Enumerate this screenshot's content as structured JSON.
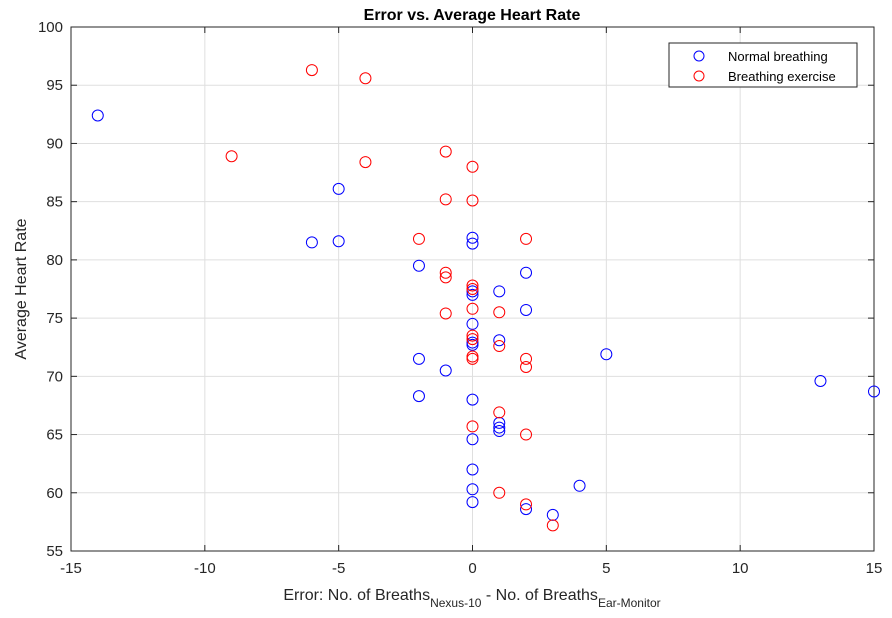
{
  "chart_data": {
    "type": "scatter",
    "title": "Error vs. Average Heart Rate",
    "xlabel": {
      "parts": [
        {
          "text": "Error: No. of Breaths",
          "sub": false
        },
        {
          "text": "Nexus-10",
          "sub": true
        },
        {
          "text": " - No. of Breaths",
          "sub": false
        },
        {
          "text": "Ear-Monitor",
          "sub": true
        }
      ]
    },
    "ylabel": "Average Heart Rate",
    "xlim": [
      -15,
      15
    ],
    "ylim": [
      55,
      100
    ],
    "xticks": [
      -15,
      -10,
      -5,
      0,
      5,
      10,
      15
    ],
    "yticks": [
      55,
      60,
      65,
      70,
      75,
      80,
      85,
      90,
      95,
      100
    ],
    "grid": true,
    "legend_position": "top-right",
    "marker": "open-circle",
    "series": [
      {
        "name": "Normal breathing",
        "color": "#0000ff",
        "points": [
          [
            -14,
            92.4
          ],
          [
            -6,
            81.5
          ],
          [
            -5,
            86.1
          ],
          [
            -5,
            81.6
          ],
          [
            -2,
            79.5
          ],
          [
            -2,
            71.5
          ],
          [
            -2,
            68.3
          ],
          [
            -1,
            70.5
          ],
          [
            0,
            81.9
          ],
          [
            0,
            81.4
          ],
          [
            0,
            77.3
          ],
          [
            0,
            77.0
          ],
          [
            0,
            74.5
          ],
          [
            0,
            72.9
          ],
          [
            0,
            72.7
          ],
          [
            0,
            68.0
          ],
          [
            0,
            64.6
          ],
          [
            0,
            62.0
          ],
          [
            0,
            60.3
          ],
          [
            0,
            59.2
          ],
          [
            1,
            77.3
          ],
          [
            1,
            73.1
          ],
          [
            1,
            66.0
          ],
          [
            1,
            65.6
          ],
          [
            1,
            65.3
          ],
          [
            2,
            78.9
          ],
          [
            2,
            75.7
          ],
          [
            2,
            58.6
          ],
          [
            3,
            58.1
          ],
          [
            4,
            60.6
          ],
          [
            5,
            71.9
          ],
          [
            13,
            69.6
          ],
          [
            15,
            68.7
          ]
        ]
      },
      {
        "name": "Breathing exercise",
        "color": "#ff0000",
        "points": [
          [
            -9,
            88.9
          ],
          [
            -6,
            96.3
          ],
          [
            -4,
            95.6
          ],
          [
            -4,
            88.4
          ],
          [
            -2,
            81.8
          ],
          [
            -1,
            89.3
          ],
          [
            -1,
            85.2
          ],
          [
            -1,
            78.9
          ],
          [
            -1,
            78.5
          ],
          [
            -1,
            75.4
          ],
          [
            0,
            88.0
          ],
          [
            0,
            85.1
          ],
          [
            0,
            77.8
          ],
          [
            0,
            77.5
          ],
          [
            0,
            75.8
          ],
          [
            0,
            73.5
          ],
          [
            0,
            73.2
          ],
          [
            0,
            71.7
          ],
          [
            0,
            71.5
          ],
          [
            0,
            65.7
          ],
          [
            1,
            75.5
          ],
          [
            1,
            72.6
          ],
          [
            1,
            66.9
          ],
          [
            1,
            60.0
          ],
          [
            2,
            81.8
          ],
          [
            2,
            71.5
          ],
          [
            2,
            70.8
          ],
          [
            2,
            65.0
          ],
          [
            2,
            59.0
          ],
          [
            3,
            57.2
          ]
        ]
      }
    ]
  }
}
